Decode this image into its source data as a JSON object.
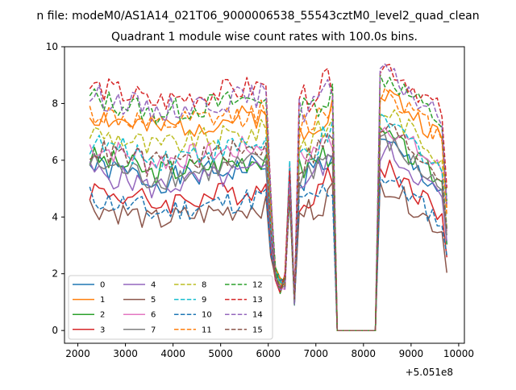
{
  "suptitle": "n file: modeM0/AS1A14_021T06_9000006538_55543cztM0_level2_quad_clean",
  "chart_data": {
    "type": "line",
    "title": "Quadrant 1 module wise count rates with 100.0s bins.",
    "xlabel": "",
    "ylabel": "",
    "offset_label": "+5.051e8",
    "offset": 505100000,
    "xlim": [
      1720,
      10120
    ],
    "ylim": [
      -0.45,
      10
    ],
    "xticks": [
      2000,
      3000,
      4000,
      5000,
      6000,
      7000,
      8000,
      9000,
      10000
    ],
    "yticks": [
      0,
      2,
      4,
      6,
      8,
      10
    ],
    "grid": false,
    "legend": {
      "location": "lower-left",
      "ncol": 4
    },
    "series": [
      {
        "name": "0",
        "color": "#1f77b4",
        "dash": "solid",
        "base": 5.2,
        "seed": 1
      },
      {
        "name": "1",
        "color": "#ff7f0e",
        "dash": "solid",
        "base": 7.0,
        "seed": 2
      },
      {
        "name": "2",
        "color": "#2ca02c",
        "dash": "solid",
        "base": 5.5,
        "seed": 3
      },
      {
        "name": "3",
        "color": "#d62728",
        "dash": "solid",
        "base": 4.4,
        "seed": 4
      },
      {
        "name": "4",
        "color": "#9467bd",
        "dash": "solid",
        "base": 5.0,
        "seed": 5
      },
      {
        "name": "5",
        "color": "#8c564b",
        "dash": "solid",
        "base": 3.8,
        "seed": 6
      },
      {
        "name": "6",
        "color": "#e377c2",
        "dash": "solid",
        "base": 5.9,
        "seed": 7
      },
      {
        "name": "7",
        "color": "#7f7f7f",
        "dash": "solid",
        "base": 5.3,
        "seed": 8
      },
      {
        "name": "8",
        "color": "#bcbd22",
        "dash": "dashed",
        "base": 6.4,
        "seed": 9
      },
      {
        "name": "9",
        "color": "#17becf",
        "dash": "dashed",
        "base": 6.0,
        "seed": 10
      },
      {
        "name": "10",
        "color": "#1f77b4",
        "dash": "dashed",
        "base": 4.1,
        "seed": 11
      },
      {
        "name": "11",
        "color": "#ff7f0e",
        "dash": "dashed",
        "base": 7.1,
        "seed": 12
      },
      {
        "name": "12",
        "color": "#2ca02c",
        "dash": "dashed",
        "base": 7.6,
        "seed": 13
      },
      {
        "name": "13",
        "color": "#d62728",
        "dash": "dashed",
        "base": 8.0,
        "seed": 14
      },
      {
        "name": "14",
        "color": "#9467bd",
        "dash": "dashed",
        "base": 7.7,
        "seed": 15
      },
      {
        "name": "15",
        "color": "#8c564b",
        "dash": "dashed",
        "base": 5.8,
        "seed": 16
      }
    ]
  }
}
